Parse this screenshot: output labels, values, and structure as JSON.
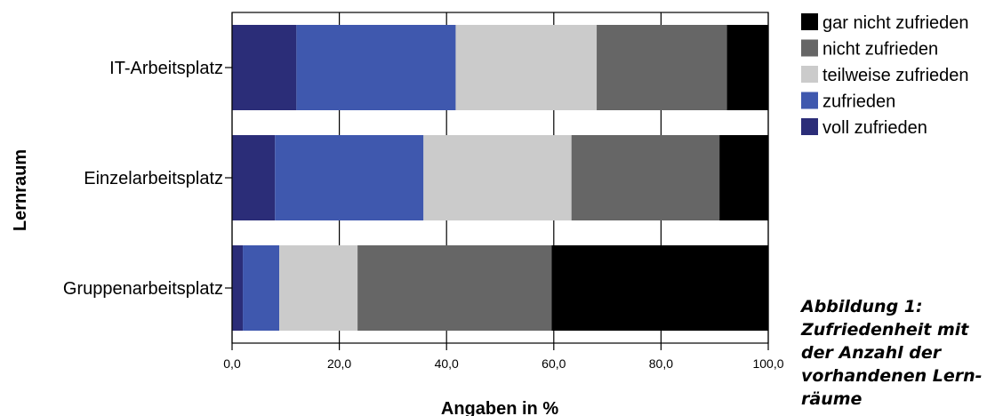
{
  "chart_data": {
    "type": "bar",
    "orientation": "horizontal",
    "stacked": true,
    "title": "",
    "xlabel": "Angaben in %",
    "ylabel": "Lernraum",
    "xlim": [
      0,
      100
    ],
    "x_ticks": [
      "0,0",
      "20,0",
      "40,0",
      "60,0",
      "80,0",
      "100,0"
    ],
    "grid": true,
    "legend_position": "top-right",
    "categories": [
      "IT-Arbeitsplatz",
      "Einzelarbeitsplatz",
      "Gruppenarbeitsplatz"
    ],
    "series": [
      {
        "name": "voll zufrieden",
        "color": "#2b2d78",
        "values": [
          12.0,
          8.0,
          2.0
        ]
      },
      {
        "name": "zufrieden",
        "color": "#3f58ae",
        "values": [
          29.7,
          27.7,
          6.8
        ]
      },
      {
        "name": "teilweise zufrieden",
        "color": "#cbcbcb",
        "values": [
          26.3,
          27.6,
          14.6
        ]
      },
      {
        "name": "nicht zufrieden",
        "color": "#666666",
        "values": [
          24.3,
          27.6,
          36.2
        ]
      },
      {
        "name": "gar nicht zufrieden",
        "color": "#000000",
        "values": [
          7.7,
          9.1,
          40.4
        ]
      }
    ],
    "legend_order": [
      "gar nicht zufrieden",
      "nicht zufrieden",
      "teilweise zufrieden",
      "zufrieden",
      "voll zufrieden"
    ]
  },
  "caption": {
    "lines": [
      "Abbildung 1:",
      "Zufriedenheit mit",
      "der Anzahl der",
      "vorhandenen Lern-",
      "räume"
    ]
  }
}
